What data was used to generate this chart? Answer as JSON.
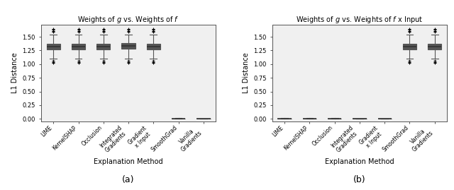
{
  "title_a": "Weights of $g$ vs. Weights of $f$",
  "title_b": "Weights of $g$ vs. Weights of $f$ x Input",
  "xlabel": "Explanation Method",
  "ylabel": "L1 Distance",
  "categories": [
    "LIME",
    "KernelSHAP",
    "Occlusion",
    "Integrated\nGradients",
    "Gradient\nx Input",
    "SmoothGrad",
    "Vanilla\nGradients"
  ],
  "subcaption_a": "(a)",
  "subcaption_b": "(b)",
  "box_facecolor": "#8fa8c8",
  "box_edgecolor": "#555555",
  "whisker_color": "#555555",
  "flier_color": "#888888",
  "median_color": "#333333",
  "background_color": "#f0f0f0",
  "ylim": [
    -0.05,
    1.72
  ],
  "yticks": [
    0.0,
    0.25,
    0.5,
    0.75,
    1.0,
    1.25,
    1.5
  ],
  "plot_a": {
    "medians": [
      1.325,
      1.325,
      1.325,
      1.33,
      1.325,
      0.004,
      0.004
    ],
    "q1": [
      1.265,
      1.265,
      1.265,
      1.275,
      1.265,
      0.001,
      0.001
    ],
    "q3": [
      1.375,
      1.375,
      1.375,
      1.385,
      1.375,
      0.007,
      0.007
    ],
    "whislo": [
      1.1,
      1.1,
      1.1,
      1.1,
      1.1,
      0.0,
      0.0
    ],
    "whishi": [
      1.535,
      1.535,
      1.535,
      1.535,
      1.535,
      0.012,
      0.008
    ],
    "fliers_y": [
      [
        1.585,
        1.605,
        1.625,
        1.645,
        1.06,
        1.04,
        1.02
      ],
      [
        1.585,
        1.605,
        1.625,
        1.645,
        1.06,
        1.04,
        1.02
      ],
      [
        1.585,
        1.605,
        1.625,
        1.645,
        1.06,
        1.04,
        1.02
      ],
      [
        1.585,
        1.605,
        1.625,
        1.645,
        1.06,
        1.04,
        1.02
      ],
      [
        1.585,
        1.605,
        1.625,
        1.645,
        1.06,
        1.04,
        1.02
      ],
      [],
      []
    ]
  },
  "plot_b": {
    "medians": [
      0.004,
      0.004,
      0.004,
      0.002,
      0.002,
      1.325,
      1.325
    ],
    "q1": [
      0.001,
      0.001,
      0.001,
      0.0005,
      0.0005,
      1.265,
      1.265
    ],
    "q3": [
      0.007,
      0.007,
      0.007,
      0.004,
      0.004,
      1.375,
      1.375
    ],
    "whislo": [
      0.0,
      0.0,
      0.0,
      0.0,
      0.0,
      1.1,
      1.1
    ],
    "whishi": [
      0.012,
      0.012,
      0.012,
      0.008,
      0.008,
      1.535,
      1.535
    ],
    "fliers_y": [
      [],
      [],
      [],
      [],
      [],
      [
        1.585,
        1.605,
        1.625,
        1.645,
        1.06,
        1.04,
        1.02
      ],
      [
        1.585,
        1.605,
        1.625,
        1.645,
        1.06,
        1.04,
        1.02
      ]
    ]
  }
}
